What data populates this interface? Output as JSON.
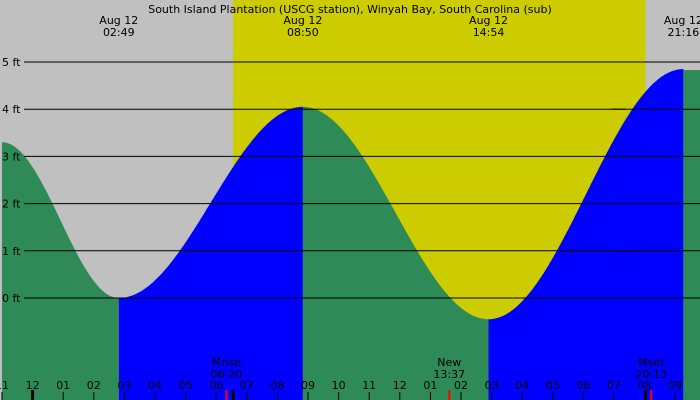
{
  "chart_data": {
    "type": "area",
    "title": "South Island Plantation (USCG station), Winyah Bay, South Carolina (sub)",
    "ylabel_unit": "ft",
    "y_ticks": [
      0,
      1,
      2,
      3,
      4,
      5
    ],
    "y_tick_labels": [
      "0 ft",
      "1 ft",
      "2 ft",
      "3 ft",
      "4 ft",
      "5 ft"
    ],
    "x_range_hours": [
      23.0,
      33.75
    ],
    "x_tick_labels": [
      "11",
      "12",
      "01",
      "02",
      "03",
      "04",
      "05",
      "06",
      "07",
      "08",
      "09",
      "10",
      "11",
      "12",
      "01",
      "02",
      "03",
      "04",
      "05",
      "06",
      "07",
      "08",
      "09"
    ],
    "x_tick_hours": [
      23,
      24,
      25,
      26,
      27,
      28,
      29,
      30,
      31,
      32,
      33,
      34,
      35,
      36,
      37,
      38,
      39,
      40,
      41,
      42,
      43,
      44,
      45
    ],
    "tide_events": [
      {
        "date": "Aug 12",
        "time": "02:49",
        "hour": 26.817,
        "height": 0.0,
        "kind": "low"
      },
      {
        "date": "Aug 12",
        "time": "08:50",
        "hour": 32.833,
        "height": 4.05,
        "kind": "high"
      },
      {
        "date": "Aug 12",
        "time": "14:54",
        "hour": 38.9,
        "height": -0.45,
        "kind": "low"
      },
      {
        "date": "Aug 12",
        "time": "21:16",
        "hour": 45.267,
        "height": 4.85,
        "kind": "high"
      }
    ],
    "series_start": {
      "hour": 23.0,
      "height": 3.3
    },
    "daylight": {
      "start_hour": 30.55,
      "end_hour": 44.03
    },
    "moon_events": [
      {
        "label": "Mrise",
        "time": "06:20",
        "hour": 30.333
      },
      {
        "label": "New",
        "time": "13:37",
        "hour": 37.617
      },
      {
        "label": "Mset",
        "time": "20:13",
        "hour": 44.217
      }
    ],
    "colors": {
      "night": "#c0c0c0",
      "day": "#cccc00",
      "falling": "#2e8b57",
      "rising": "#0000ff",
      "gridline": "#000000",
      "moon_tick": "#ff0000",
      "day_tick": "#000000"
    }
  }
}
